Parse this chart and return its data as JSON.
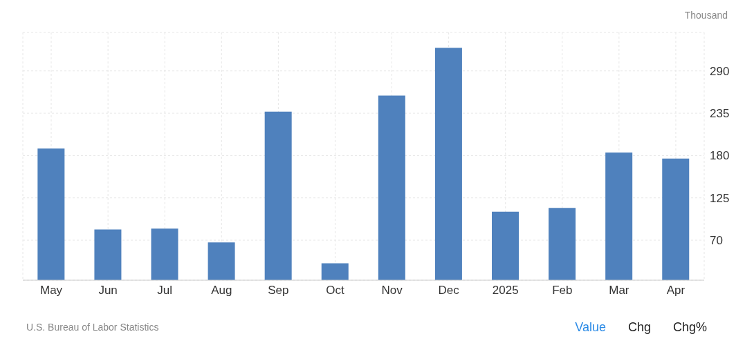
{
  "chart_data": {
    "type": "bar",
    "ylabel": "Thousand",
    "categories": [
      "May",
      "Jun",
      "Jul",
      "Aug",
      "Sep",
      "Oct",
      "Nov",
      "Dec",
      "2025",
      "Feb",
      "Mar",
      "Apr"
    ],
    "values": [
      189,
      84,
      85,
      67,
      237,
      40,
      258,
      320,
      107,
      112,
      184,
      176
    ],
    "color": "#4f81bd",
    "ylim": [
      18,
      340
    ],
    "yticks": [
      70,
      125,
      180,
      235,
      290
    ],
    "grid": true,
    "annotations": [
      "U.S. Bureau of Labor Statistics",
      "Value",
      "Chg",
      "Chg%"
    ]
  }
}
